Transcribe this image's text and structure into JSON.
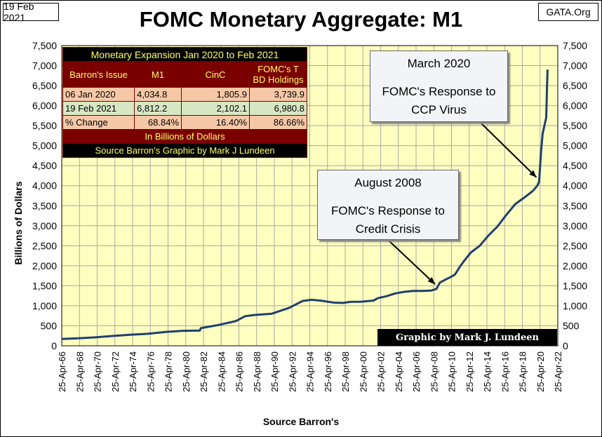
{
  "header": {
    "date": "19 Feb 2021",
    "site": "GATA.Org"
  },
  "chart_data": {
    "type": "line",
    "title": "FOMC Monetary Aggregate: M1",
    "xlabel": "Source Barron's",
    "ylabel": "Billions  of  Dollars",
    "ylim": [
      0,
      7500
    ],
    "xlim": [
      1966.31,
      2022.31
    ],
    "yticks": [
      0,
      500,
      1000,
      1500,
      2000,
      2500,
      3000,
      3500,
      4000,
      4500,
      5000,
      5500,
      6000,
      6500,
      7000,
      7500
    ],
    "ytick_labels": [
      "0",
      "500",
      "1,000",
      "1,500",
      "2,000",
      "2,500",
      "3,000",
      "3,500",
      "4,000",
      "4,500",
      "5,000",
      "5,500",
      "6,000",
      "6,500",
      "7,000",
      "7,500"
    ],
    "xticks": [
      1966.31,
      1968.31,
      1970.31,
      1972.31,
      1974.31,
      1976.31,
      1978.31,
      1980.31,
      1982.31,
      1984.31,
      1986.31,
      1988.31,
      1990.31,
      1992.31,
      1994.31,
      1996.31,
      1998.31,
      2000.31,
      2002.31,
      2004.31,
      2006.31,
      2008.31,
      2010.31,
      2012.31,
      2014.31,
      2016.31,
      2018.31,
      2020.31,
      2022.31
    ],
    "xtick_labels": [
      "25-Apr-66",
      "25-Apr-68",
      "25-Apr-70",
      "25-Apr-72",
      "25-Apr-74",
      "25-Apr-76",
      "25-Apr-78",
      "25-Apr-80",
      "25-Apr-82",
      "25-Apr-84",
      "25-Apr-86",
      "25-Apr-88",
      "25-Apr-90",
      "25-Apr-92",
      "25-Apr-94",
      "25-Apr-96",
      "25-Apr-98",
      "25-Apr-00",
      "25-Apr-02",
      "25-Apr-04",
      "25-Apr-06",
      "25-Apr-08",
      "25-Apr-10",
      "25-Apr-12",
      "25-Apr-14",
      "25-Apr-16",
      "25-Apr-18",
      "25-Apr-20",
      "25-Apr-22"
    ],
    "grid": true,
    "series": [
      {
        "color": "#1f3f6e",
        "points": [
          [
            1966.3,
            170
          ],
          [
            1968,
            185
          ],
          [
            1970,
            210
          ],
          [
            1972,
            245
          ],
          [
            1974,
            275
          ],
          [
            1976,
            300
          ],
          [
            1978,
            345
          ],
          [
            1980,
            375
          ],
          [
            1981.9,
            380
          ],
          [
            1982,
            440
          ],
          [
            1984,
            520
          ],
          [
            1986,
            620
          ],
          [
            1987,
            740
          ],
          [
            1988,
            770
          ],
          [
            1990,
            800
          ],
          [
            1992,
            950
          ],
          [
            1993.5,
            1120
          ],
          [
            1994.5,
            1150
          ],
          [
            1995.5,
            1130
          ],
          [
            1997,
            1080
          ],
          [
            1998,
            1070
          ],
          [
            1999,
            1100
          ],
          [
            2000,
            1100
          ],
          [
            2001.5,
            1130
          ],
          [
            2002,
            1190
          ],
          [
            2003,
            1240
          ],
          [
            2004,
            1310
          ],
          [
            2005,
            1350
          ],
          [
            2006,
            1370
          ],
          [
            2007,
            1370
          ],
          [
            2008,
            1380
          ],
          [
            2008.6,
            1420
          ],
          [
            2009,
            1580
          ],
          [
            2009.6,
            1650
          ],
          [
            2010.3,
            1730
          ],
          [
            2010.7,
            1780
          ],
          [
            2011.3,
            1990
          ],
          [
            2011.8,
            2140
          ],
          [
            2012.5,
            2330
          ],
          [
            2013.5,
            2500
          ],
          [
            2014.5,
            2760
          ],
          [
            2015.5,
            2980
          ],
          [
            2016.5,
            3270
          ],
          [
            2017.5,
            3540
          ],
          [
            2018.5,
            3700
          ],
          [
            2019.5,
            3870
          ],
          [
            2020,
            4000
          ],
          [
            2020.2,
            4100
          ],
          [
            2020.4,
            4800
          ],
          [
            2020.6,
            5300
          ],
          [
            2021.0,
            5700
          ],
          [
            2021.1,
            6500
          ],
          [
            2021.15,
            6900
          ]
        ]
      }
    ],
    "annotations": [
      {
        "line1": "August 2008",
        "line2": "FOMC's Response to",
        "line3": "Credit Crisis"
      },
      {
        "line1": "March 2020",
        "line2": "FOMC's Response to",
        "line3": "CCP Virus"
      }
    ],
    "credit": "Graphic by Mark J. Lundeen"
  },
  "table": {
    "title": "Monetary Expansion Jan 2020 to Feb 2021",
    "headers": [
      "Barron's Issue",
      "M1",
      "CinC",
      "FOMC's T BD Holdings"
    ],
    "rows": [
      [
        "06 Jan 2020",
        "4,034.8",
        "1,805.9",
        "3,739.9"
      ],
      [
        "19 Feb 2021",
        "6,812.2",
        "2,102.1",
        "6,980.8"
      ],
      [
        "% Change",
        "68.84%",
        "16.40%",
        "86.66%"
      ]
    ],
    "unit_note": "In Billions of Dollars",
    "source_note": "Source Barron's  Graphic by Mark J Lundeen"
  },
  "colors": {
    "plot_bg": "#ffffc0",
    "grid": "#a8a8a8",
    "line": "#1f3f6e",
    "table_header": "#7a0000",
    "table_title_bg": "#000000",
    "table_text": "#ffff66"
  }
}
